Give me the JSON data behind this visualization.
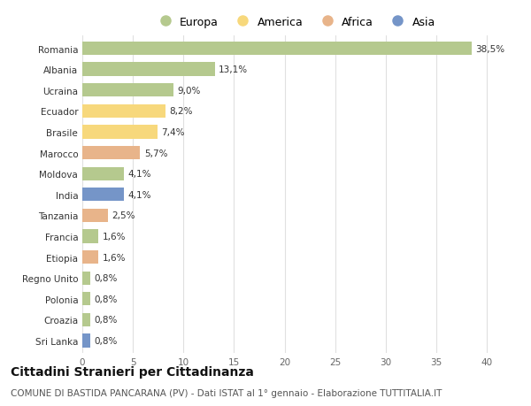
{
  "countries": [
    "Romania",
    "Albania",
    "Ucraina",
    "Ecuador",
    "Brasile",
    "Marocco",
    "Moldova",
    "India",
    "Tanzania",
    "Francia",
    "Etiopia",
    "Regno Unito",
    "Polonia",
    "Croazia",
    "Sri Lanka"
  ],
  "values": [
    38.5,
    13.1,
    9.0,
    8.2,
    7.4,
    5.7,
    4.1,
    4.1,
    2.5,
    1.6,
    1.6,
    0.8,
    0.8,
    0.8,
    0.8
  ],
  "labels": [
    "38,5%",
    "13,1%",
    "9,0%",
    "8,2%",
    "7,4%",
    "5,7%",
    "4,1%",
    "4,1%",
    "2,5%",
    "1,6%",
    "1,6%",
    "0,8%",
    "0,8%",
    "0,8%",
    "0,8%"
  ],
  "continents": [
    "Europa",
    "Europa",
    "Europa",
    "America",
    "America",
    "Africa",
    "Europa",
    "Asia",
    "Africa",
    "Europa",
    "Africa",
    "Europa",
    "Europa",
    "Europa",
    "Asia"
  ],
  "continent_colors": {
    "Europa": "#b5c98e",
    "America": "#f7d87c",
    "Africa": "#e8b48a",
    "Asia": "#7595c8"
  },
  "legend_order": [
    "Europa",
    "America",
    "Africa",
    "Asia"
  ],
  "xlim": [
    0,
    42
  ],
  "xticks": [
    0,
    5,
    10,
    15,
    20,
    25,
    30,
    35,
    40
  ],
  "title": "Cittadini Stranieri per Cittadinanza",
  "subtitle": "COMUNE DI BASTIDA PANCARANA (PV) - Dati ISTAT al 1° gennaio - Elaborazione TUTTITALIA.IT",
  "background_color": "#ffffff",
  "grid_color": "#e0e0e0",
  "bar_height": 0.65,
  "label_fontsize": 7.5,
  "tick_fontsize": 7.5,
  "title_fontsize": 10,
  "subtitle_fontsize": 7.5
}
